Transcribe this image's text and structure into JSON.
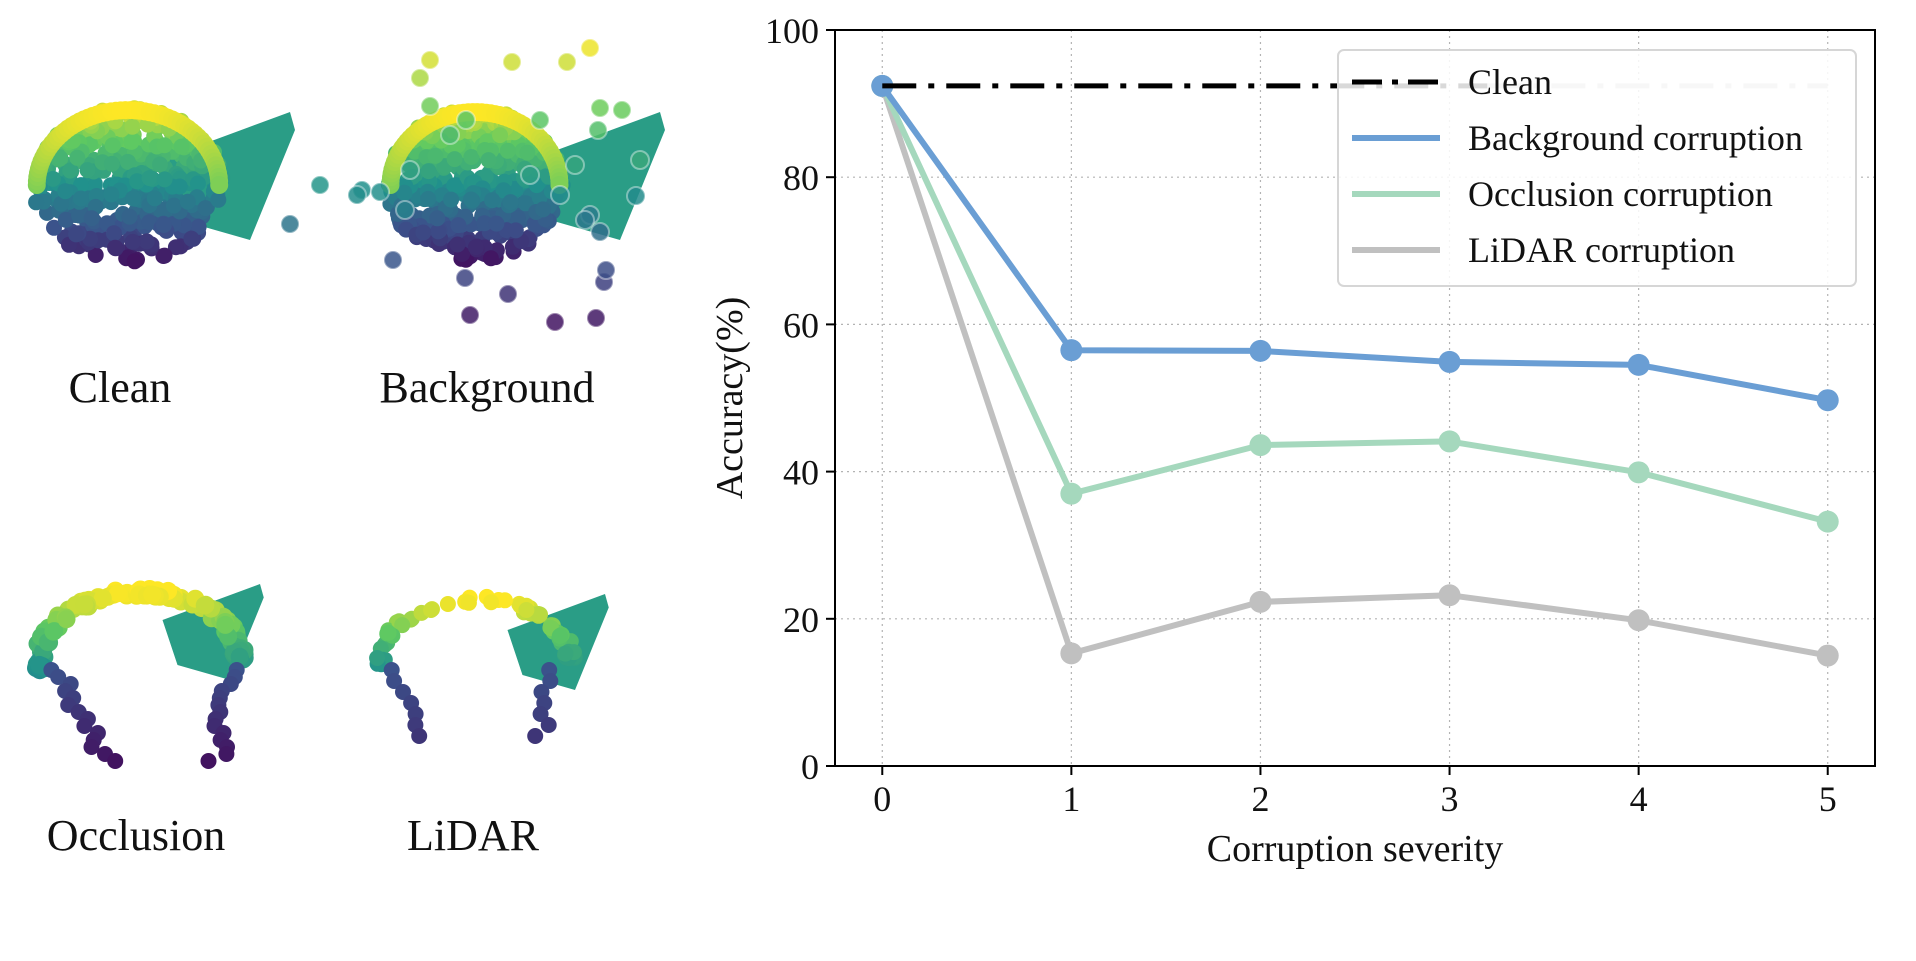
{
  "panels": [
    {
      "label": "Clean",
      "shape": "clean"
    },
    {
      "label": "Background",
      "shape": "background"
    },
    {
      "label": "Occlusion",
      "shape": "occlusion"
    },
    {
      "label": "LiDAR",
      "shape": "lidar"
    }
  ],
  "colors": {
    "clean": "#000000",
    "clean_alt": "#c8c8c8",
    "background": "#6a9ed4",
    "occlusion": "#a5d8bd",
    "lidar": "#c0c0c0",
    "viridis": [
      "#440154",
      "#3b528b",
      "#21918c",
      "#5ec962",
      "#fde725"
    ]
  },
  "chart_data": {
    "type": "line",
    "title": "",
    "xlabel": "Corruption severity",
    "ylabel": "Accuracy(%)",
    "x": [
      0,
      1,
      2,
      3,
      4,
      5
    ],
    "xlim": [
      -0.25,
      5.25
    ],
    "ylim": [
      0,
      100
    ],
    "xticks": [
      "0",
      "1",
      "2",
      "3",
      "4",
      "5"
    ],
    "yticks": [
      "0",
      "20",
      "40",
      "60",
      "80",
      "100"
    ],
    "grid": true,
    "legend_position": "top-right",
    "series": [
      {
        "name": "Clean",
        "key": "clean",
        "style": "dashdot",
        "values": [
          92.4,
          92.4,
          92.4,
          92.4,
          92.4,
          92.4
        ],
        "markers": false
      },
      {
        "name": "Background corruption",
        "key": "background",
        "style": "solid",
        "values": [
          92.4,
          56.5,
          56.4,
          54.9,
          54.5,
          49.7
        ],
        "markers": true
      },
      {
        "name": "Occlusion corruption",
        "key": "occlusion",
        "style": "solid",
        "values": [
          92.4,
          37.0,
          43.6,
          44.1,
          39.9,
          33.2
        ],
        "markers": true
      },
      {
        "name": "LiDAR corruption",
        "key": "lidar",
        "style": "solid",
        "values": [
          92.4,
          15.3,
          22.3,
          23.2,
          19.8,
          15.0
        ],
        "markers": true
      }
    ]
  }
}
